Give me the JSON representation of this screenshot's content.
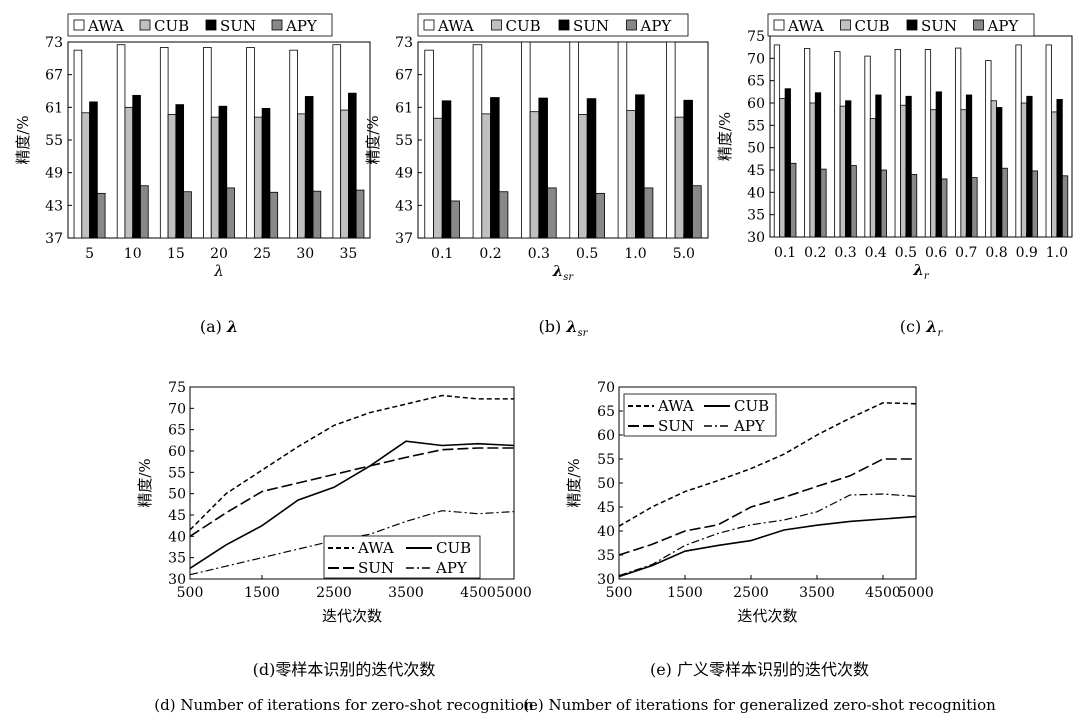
{
  "chart_data": [
    {
      "id": "a",
      "type": "bar",
      "caption": "(a)λ",
      "xlabel": "λ",
      "ylabel": "精度/%",
      "ylim": [
        37,
        73
      ],
      "yticks": [
        37,
        43,
        49,
        55,
        61,
        67,
        73
      ],
      "categories": [
        "5",
        "10",
        "15",
        "20",
        "25",
        "30",
        "35"
      ],
      "legend_position": "top",
      "series": [
        {
          "name": "AWA",
          "color": "#ffffff",
          "values": [
            71.5,
            72.5,
            72.0,
            72.0,
            72.0,
            71.5,
            72.5
          ]
        },
        {
          "name": "CUB",
          "color": "#c0c0c0",
          "values": [
            60.0,
            61.0,
            59.7,
            59.2,
            59.2,
            59.8,
            60.5
          ]
        },
        {
          "name": "SUN",
          "color": "#000000",
          "values": [
            62.0,
            63.2,
            61.5,
            61.2,
            60.8,
            63.0,
            63.6
          ]
        },
        {
          "name": "APY",
          "color": "#888888",
          "values": [
            45.2,
            46.6,
            45.5,
            46.2,
            45.4,
            45.6,
            45.8
          ]
        }
      ]
    },
    {
      "id": "b",
      "type": "bar",
      "caption": "(b)λ",
      "caption_sub": "sr",
      "xlabel": "λ",
      "xlabel_sub": "sr",
      "ylabel": "精度/%",
      "ylim": [
        37,
        73
      ],
      "yticks": [
        37,
        43,
        49,
        55,
        61,
        67,
        73
      ],
      "categories": [
        "0.1",
        "0.2",
        "0.3",
        "0.5",
        "1.0",
        "5.0"
      ],
      "legend_position": "top",
      "series": [
        {
          "name": "AWA",
          "color": "#ffffff",
          "values": [
            71.5,
            72.5,
            73.0,
            73.0,
            73.0,
            73.0
          ]
        },
        {
          "name": "CUB",
          "color": "#c0c0c0",
          "values": [
            59.0,
            59.8,
            60.2,
            59.7,
            60.4,
            59.2
          ]
        },
        {
          "name": "SUN",
          "color": "#000000",
          "values": [
            62.2,
            62.8,
            62.7,
            62.6,
            63.3,
            62.3
          ]
        },
        {
          "name": "APY",
          "color": "#888888",
          "values": [
            43.8,
            45.5,
            46.2,
            45.2,
            46.2,
            46.6
          ]
        }
      ]
    },
    {
      "id": "c",
      "type": "bar",
      "caption": "(c)λ",
      "caption_sub": "r",
      "xlabel": "λ",
      "xlabel_sub": "r",
      "ylabel": "精度/%",
      "ylim": [
        30,
        75
      ],
      "yticks": [
        30,
        35,
        40,
        45,
        50,
        55,
        60,
        65,
        70,
        75
      ],
      "categories": [
        "0.1",
        "0.2",
        "0.3",
        "0.4",
        "0.5",
        "0.6",
        "0.7",
        "0.8",
        "0.9",
        "1.0"
      ],
      "legend_position": "top",
      "series": [
        {
          "name": "AWA",
          "color": "#ffffff",
          "values": [
            73.0,
            72.2,
            71.5,
            70.5,
            72.0,
            72.0,
            72.3,
            69.5,
            73.0,
            73.0
          ]
        },
        {
          "name": "CUB",
          "color": "#c0c0c0",
          "values": [
            61.0,
            60.0,
            59.3,
            56.5,
            59.5,
            58.5,
            58.5,
            60.5,
            60.0,
            58.0
          ]
        },
        {
          "name": "SUN",
          "color": "#000000",
          "values": [
            63.2,
            62.3,
            60.5,
            61.8,
            61.5,
            62.5,
            61.8,
            59.0,
            61.5,
            60.8
          ]
        },
        {
          "name": "APY",
          "color": "#888888",
          "values": [
            46.5,
            45.2,
            46.0,
            45.0,
            44.0,
            43.0,
            43.3,
            45.4,
            44.8,
            43.7
          ]
        }
      ]
    },
    {
      "id": "d",
      "type": "line",
      "caption": "(d)零样本识别的迭代次数",
      "caption_en": "(d) Number of iterations for zero-shot recognition",
      "xlabel": "迭代次数",
      "ylabel": "精度/%",
      "xlim": [
        500,
        5000
      ],
      "ylim": [
        30,
        75
      ],
      "xticks": [
        500,
        1500,
        2500,
        3500,
        4500,
        5000
      ],
      "yticks": [
        30,
        35,
        40,
        45,
        50,
        55,
        60,
        65,
        70,
        75
      ],
      "x": [
        500,
        1000,
        1500,
        2000,
        2500,
        3000,
        3500,
        4000,
        4500,
        5000
      ],
      "legend_position": "bottom-right",
      "series": [
        {
          "name": "AWA",
          "style": "dash-short",
          "values": [
            41.5,
            50.0,
            55.5,
            61.0,
            66.0,
            69.0,
            71.0,
            73.0,
            72.2,
            72.2
          ]
        },
        {
          "name": "CUB",
          "style": "solid",
          "values": [
            32.5,
            38.0,
            42.5,
            48.5,
            51.5,
            56.5,
            62.3,
            61.3,
            61.7,
            61.3
          ]
        },
        {
          "name": "SUN",
          "style": "dash-long",
          "values": [
            40.0,
            45.5,
            50.5,
            52.5,
            54.5,
            56.5,
            58.5,
            60.3,
            60.7,
            60.7
          ]
        },
        {
          "name": "APY",
          "style": "dash-dot",
          "values": [
            31.0,
            33.0,
            35.0,
            37.0,
            39.0,
            40.5,
            43.5,
            46.0,
            45.3,
            45.8
          ]
        }
      ]
    },
    {
      "id": "e",
      "type": "line",
      "caption": "(e) 广义零样本识别的迭代次数",
      "caption_en": "(e) Number of iterations for generalized zero-shot recognition",
      "xlabel": "迭代次数",
      "ylabel": "精度/%",
      "xlim": [
        500,
        5000
      ],
      "ylim": [
        30,
        70
      ],
      "xticks": [
        500,
        1500,
        2500,
        3500,
        4500,
        5000
      ],
      "yticks": [
        30,
        35,
        40,
        45,
        50,
        55,
        60,
        65,
        70
      ],
      "x": [
        500,
        1000,
        1500,
        2000,
        2500,
        3000,
        3500,
        4000,
        4500,
        5000
      ],
      "legend_position": "top-left",
      "series": [
        {
          "name": "AWA",
          "style": "dash-short",
          "values": [
            41.0,
            45.0,
            48.2,
            50.5,
            53.0,
            56.0,
            60.0,
            63.5,
            66.7,
            66.5
          ]
        },
        {
          "name": "CUB",
          "style": "solid",
          "values": [
            30.5,
            32.8,
            35.8,
            37.0,
            38.0,
            40.2,
            41.2,
            42.0,
            42.5,
            43.0
          ]
        },
        {
          "name": "SUN",
          "style": "dash-long",
          "values": [
            35.0,
            37.2,
            40.0,
            41.3,
            45.0,
            47.0,
            49.3,
            51.5,
            55.0,
            55.0
          ]
        },
        {
          "name": "APY",
          "style": "dash-dot",
          "values": [
            30.7,
            33.0,
            37.0,
            39.5,
            41.3,
            42.3,
            44.0,
            47.5,
            47.7,
            47.2
          ]
        }
      ]
    }
  ]
}
